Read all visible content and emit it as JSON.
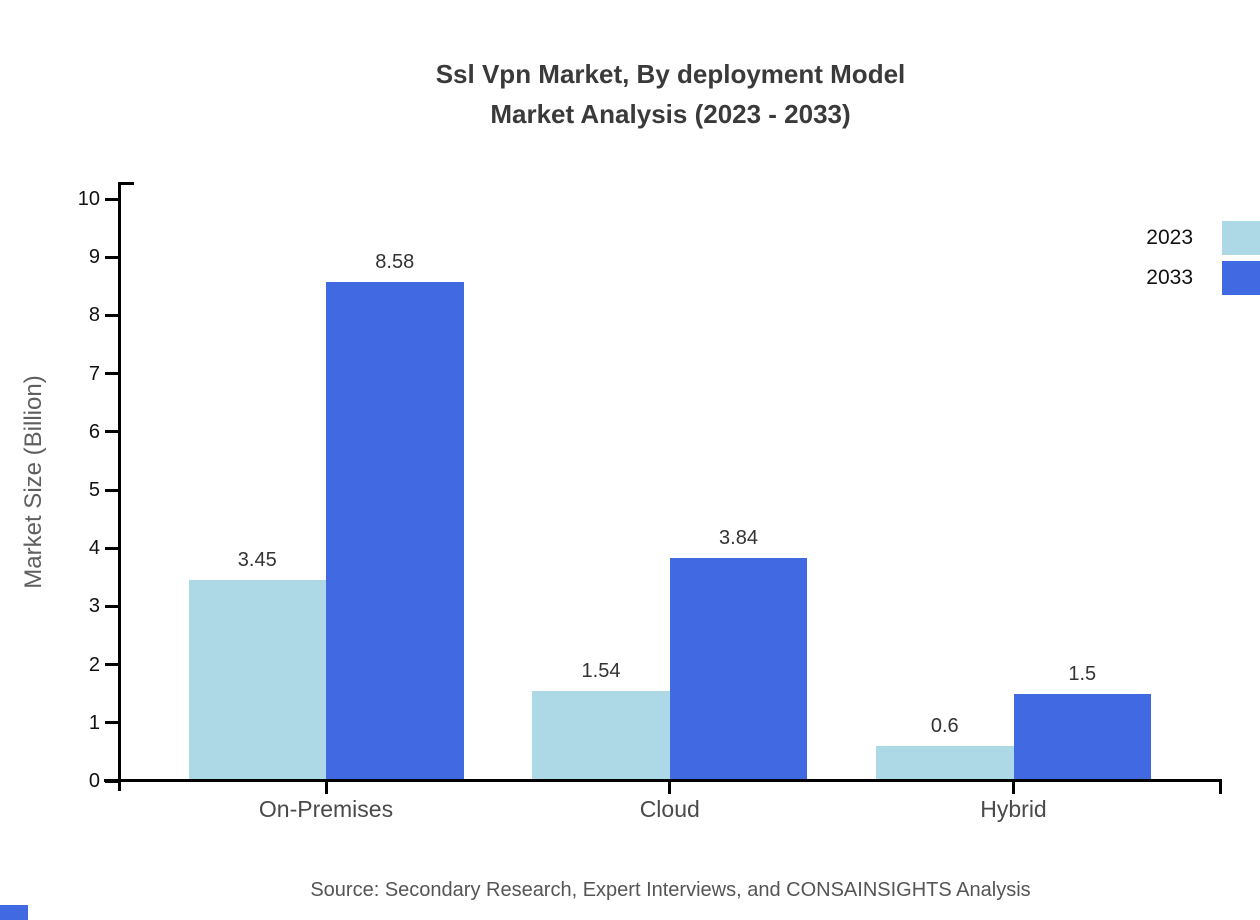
{
  "title": {
    "line1": "Ssl Vpn Market, By deployment Model",
    "line2": "Market Analysis (2023 - 2033)"
  },
  "y_axis_title": "Market Size (Billion)",
  "source_text": "Source: Secondary Research, Expert Interviews, and CONSAINSIGHTS Analysis",
  "legend": {
    "items": [
      {
        "label": "2023",
        "color": "#add8e6"
      },
      {
        "label": "2033",
        "color": "#4169e1"
      }
    ]
  },
  "colors": {
    "series_2023": "#add8e6",
    "series_2033": "#4169e1",
    "axis": "#000000",
    "title_text": "#3a3a3a",
    "muted_text": "#555555",
    "brand_square": "#4169e1"
  },
  "chart_data": {
    "type": "bar",
    "title": "Ssl Vpn Market, By deployment Model Market Analysis (2023 - 2033)",
    "categories": [
      "On-Premises",
      "Cloud",
      "Hybrid"
    ],
    "series": [
      {
        "name": "2023",
        "color": "#add8e6",
        "values": [
          3.45,
          1.54,
          0.6
        ]
      },
      {
        "name": "2033",
        "color": "#4169e1",
        "values": [
          8.58,
          3.84,
          1.5
        ]
      }
    ],
    "xlabel": "",
    "ylabel": "Market Size (Billion)",
    "ylim": [
      0,
      10
    ],
    "yticks": [
      0,
      1,
      2,
      3,
      4,
      5,
      6,
      7,
      8,
      9,
      10
    ],
    "grid": false,
    "legend_position": "top-right",
    "value_labels_shown": true
  }
}
